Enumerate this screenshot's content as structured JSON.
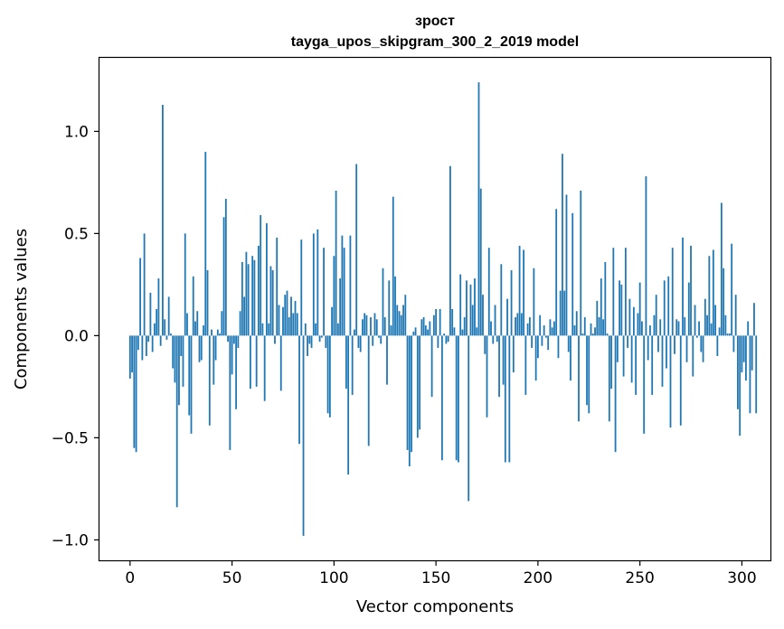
{
  "chart_data": {
    "type": "bar",
    "title": "зрост",
    "subtitle": "tayga_upos_skipgram_300_2_2019 model",
    "xlabel": "Vector components",
    "ylabel": "Components values",
    "xlim": [
      -15,
      314
    ],
    "ylim": [
      -1.1,
      1.36
    ],
    "xticks": [
      0,
      50,
      100,
      150,
      200,
      250,
      300
    ],
    "xtick_labels": [
      "0",
      "50",
      "100",
      "150",
      "200",
      "250",
      "300"
    ],
    "yticks": [
      -1.0,
      -0.5,
      0.0,
      0.5,
      1.0
    ],
    "ytick_labels": [
      "−1.0",
      "−0.5",
      "0.0",
      "0.5",
      "1.0"
    ],
    "bar_color": "#1f77b4",
    "grid": false,
    "values": [
      -0.21,
      -0.18,
      -0.55,
      -0.57,
      -0.07,
      0.38,
      -0.12,
      0.5,
      -0.1,
      -0.03,
      0.21,
      -0.08,
      0.06,
      0.13,
      0.28,
      -0.05,
      1.13,
      0.08,
      -0.02,
      0.19,
      0.01,
      -0.16,
      -0.23,
      -0.84,
      -0.34,
      -0.1,
      -0.25,
      0.5,
      0.11,
      -0.39,
      -0.48,
      0.29,
      0.07,
      0.12,
      -0.13,
      -0.12,
      0.05,
      0.9,
      0.32,
      -0.44,
      0.03,
      -0.24,
      -0.12,
      0.03,
      0.01,
      0.12,
      0.58,
      0.67,
      -0.03,
      -0.56,
      -0.19,
      -0.04,
      -0.36,
      -0.06,
      0.12,
      0.36,
      0.19,
      0.41,
      0.35,
      -0.26,
      0.39,
      0.37,
      -0.25,
      0.44,
      0.59,
      0.06,
      -0.32,
      0.55,
      0.06,
      0.34,
      0.32,
      -0.04,
      0.48,
      0.15,
      -0.27,
      0.14,
      0.2,
      0.22,
      0.09,
      0.19,
      0.11,
      0.17,
      0.11,
      -0.53,
      0.47,
      -0.98,
      0.06,
      -0.1,
      -0.04,
      -0.06,
      0.5,
      0.06,
      0.52,
      -0.03,
      -0.01,
      0.43,
      -0.06,
      -0.38,
      -0.4,
      0.14,
      0.39,
      0.71,
      0.06,
      0.28,
      0.49,
      0.43,
      -0.26,
      -0.68,
      0.49,
      -0.29,
      0.03,
      0.84,
      -0.06,
      -0.08,
      0.08,
      0.11,
      0.1,
      -0.54,
      0.09,
      -0.05,
      0.11,
      0.08,
      -0.01,
      -0.04,
      0.33,
      0.09,
      -0.24,
      0.27,
      0.05,
      0.68,
      0.29,
      0.15,
      0.12,
      0.1,
      0.15,
      0.2,
      -0.56,
      -0.64,
      -0.57,
      0.02,
      0.04,
      -0.5,
      -0.46,
      0.08,
      0.09,
      0.05,
      0.03,
      0.07,
      -0.3,
      0.1,
      0.13,
      -0.06,
      0.13,
      -0.61,
      0.01,
      -0.04,
      -0.03,
      0.83,
      0.13,
      0.04,
      -0.61,
      -0.62,
      0.3,
      0.03,
      0.09,
      0.27,
      -0.81,
      0.25,
      0.15,
      0.28,
      0.04,
      1.24,
      0.72,
      0.2,
      -0.09,
      -0.4,
      0.43,
      0.07,
      -0.04,
      0.15,
      -0.03,
      -0.3,
      0.35,
      -0.24,
      -0.62,
      0.18,
      -0.62,
      0.32,
      -0.18,
      0.09,
      0.11,
      0.44,
      0.11,
      0.42,
      -0.29,
      0.06,
      0.09,
      -0.06,
      0.33,
      -0.22,
      -0.11,
      0.1,
      -0.05,
      0.05,
      -0.01,
      -0.07,
      0.08,
      0.04,
      0.07,
      0.62,
      -0.11,
      0.22,
      0.89,
      0.22,
      0.69,
      -0.08,
      -0.22,
      0.6,
      0.05,
      0.12,
      -0.42,
      0.71,
      0.01,
      0.09,
      -0.34,
      -0.38,
      0.06,
      0.01,
      0.04,
      0.17,
      0.09,
      0.28,
      0.08,
      0.36,
      0.01,
      -0.42,
      -0.26,
      0.43,
      -0.57,
      -0.13,
      0.27,
      0.25,
      -0.2,
      0.43,
      -0.06,
      0.18,
      -0.23,
      0.14,
      -0.29,
      0.11,
      0.26,
      0.07,
      -0.48,
      0.78,
      -0.12,
      0.05,
      -0.29,
      0.1,
      0.2,
      -0.08,
      0.08,
      -0.25,
      0.27,
      -0.16,
      0.29,
      -0.45,
      0.43,
      -0.09,
      0.08,
      0.07,
      -0.44,
      0.48,
      0.09,
      -0.13,
      0.26,
      0.44,
      -0.2,
      0.15,
      -0.01,
      0.07,
      -0.08,
      -0.13,
      0.18,
      0.1,
      0.39,
      0.06,
      0.42,
      0.15,
      -0.1,
      0.04,
      0.65,
      0.33,
      0.1,
      0.01,
      0.01,
      0.45,
      -0.08,
      0.2,
      -0.36,
      -0.49,
      -0.18,
      -0.13,
      -0.22,
      0.07,
      -0.38,
      -0.17,
      0.16,
      -0.38
    ]
  }
}
